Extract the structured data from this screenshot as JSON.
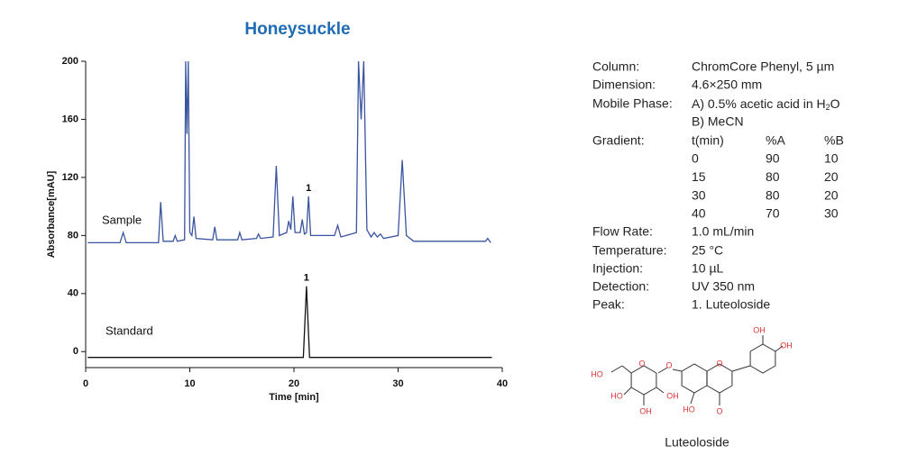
{
  "chart_data": {
    "type": "line",
    "title": "Honeysuckle",
    "x_label": "Time [min]",
    "y_label": "Absorbance[mAU]",
    "xlim": [
      0,
      40
    ],
    "xticks": [
      0,
      10,
      20,
      30,
      40
    ],
    "ylim": [
      -11,
      200
    ],
    "yticks": [
      0,
      40,
      80,
      120,
      160,
      200
    ],
    "series": [
      {
        "name": "Sample",
        "color": "#3a54a0",
        "x": [
          0.2,
          3.3,
          3.6,
          3.9,
          7.0,
          7.2,
          7.45,
          8.4,
          8.6,
          8.8,
          9.5,
          9.6,
          9.72,
          9.85,
          10.0,
          10.2,
          10.4,
          10.6,
          12.2,
          12.4,
          12.6,
          14.6,
          14.8,
          15.0,
          16.4,
          16.6,
          16.8,
          18.0,
          18.3,
          18.6,
          19.3,
          19.5,
          19.7,
          19.9,
          20.1,
          20.6,
          20.8,
          21.0,
          21.2,
          21.4,
          21.6,
          23.9,
          24.2,
          24.5,
          26.0,
          26.2,
          26.45,
          26.7,
          27.0,
          27.4,
          27.7,
          28.0,
          28.3,
          28.6,
          30.0,
          30.4,
          30.8,
          31.5,
          38.4,
          38.6,
          38.9
        ],
        "values": [
          75,
          75,
          82,
          75,
          75,
          103,
          76,
          76,
          80,
          76,
          77,
          200,
          150,
          200,
          82,
          80,
          93,
          78,
          77,
          86,
          77,
          77,
          82,
          77,
          78,
          81,
          78,
          79,
          128,
          80,
          82,
          90,
          84,
          107,
          82,
          82,
          91,
          81,
          82,
          107,
          80,
          80,
          87,
          79,
          82,
          200,
          160,
          200,
          84,
          79,
          82,
          79,
          81,
          78,
          80,
          132,
          80,
          76,
          76,
          78,
          75
        ]
      },
      {
        "name": "Standard",
        "color": "#111111",
        "x": [
          0.2,
          20.9,
          21.2,
          21.5,
          39.0
        ],
        "values": [
          -4,
          -4,
          45,
          -4,
          -4
        ]
      }
    ],
    "annotations": [
      {
        "text": "1",
        "x": 21.4,
        "y": 107
      },
      {
        "text": "1",
        "x": 21.2,
        "y": 45
      }
    ]
  },
  "method": {
    "column": {
      "label": "Column:",
      "value": "ChromCore Phenyl, 5 µm"
    },
    "dimension": {
      "label": "Dimension:",
      "value": "4.6×250 mm"
    },
    "mobile_phase": {
      "label": "Mobile Phase:",
      "line1": "A) 0.5% acetic acid in H",
      "subscript": "2",
      "line1_end": "O",
      "line2": "B) MeCN"
    },
    "gradient": {
      "label": "Gradient:",
      "header": [
        "t(min)",
        "%A",
        "%B"
      ],
      "rows": [
        [
          0,
          90,
          10
        ],
        [
          15,
          80,
          20
        ],
        [
          30,
          80,
          20
        ],
        [
          40,
          70,
          30
        ]
      ]
    },
    "flow_rate": {
      "label": "Flow Rate:",
      "value": "1.0 mL/min"
    },
    "temperature": {
      "label": "Temperature:",
      "value": "25 °C"
    },
    "injection": {
      "label": "Injection:",
      "value": "10 µL"
    },
    "detection": {
      "label": "Detection:",
      "value": "UV 350 nm"
    },
    "peak": {
      "label": "Peak:",
      "value": "1. Luteoloside"
    }
  },
  "structure": {
    "name": "Luteoloside",
    "atoms": [
      "HO",
      "O",
      "O",
      "HO",
      "OH",
      "OH",
      "O",
      "HO",
      "O",
      "OH",
      "OH"
    ]
  }
}
